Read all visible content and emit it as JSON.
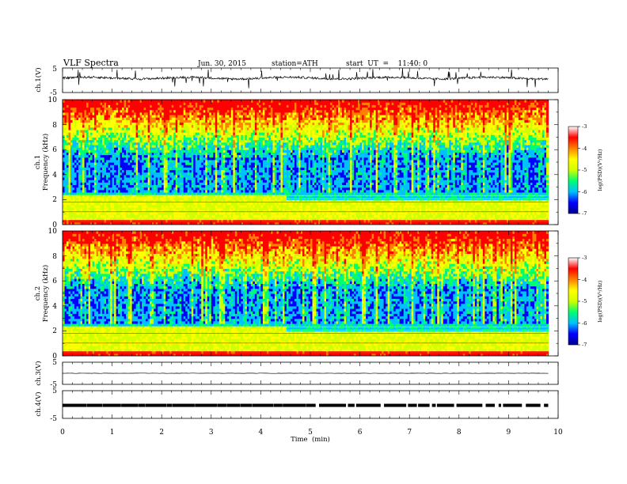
{
  "header": {
    "title": "VLF  Spectra",
    "date": "Jun. 30, 2015",
    "station": "station=ATH",
    "start": "start  UT  =    11:40: 0"
  },
  "chart_data": [
    {
      "type": "line",
      "id": "ch1-waveform",
      "ylabel": "ch.1(V)",
      "ylim": [
        -5,
        5
      ],
      "yticks": [
        "5",
        "-5"
      ],
      "xlim": [
        0,
        10
      ],
      "data_end_min": 9.8,
      "baseline_v": 0.9,
      "color": "#000000"
    },
    {
      "type": "heatmap",
      "id": "ch1-spectrogram",
      "ylabel": "ch.1",
      "ylabel2": "Frequency  (kHz)",
      "ylim": [
        0,
        10
      ],
      "yticks": [
        "0",
        "2",
        "4",
        "6",
        "8",
        "10"
      ],
      "xlim": [
        0,
        10
      ],
      "data_end_min": 9.8,
      "interference_shift_min": 4.5,
      "colorbar": {
        "label": "log(PSD)(V²/Hz)",
        "min": -7,
        "max": -3,
        "ticks": [
          "-3",
          "-4",
          "-5",
          "-6",
          "-7"
        ],
        "colors": [
          "#000090",
          "#0000ff",
          "#00c0ff",
          "#00ff70",
          "#d0ff00",
          "#ffff00",
          "#ff8000",
          "#ff0000",
          "#ffffff"
        ]
      }
    },
    {
      "type": "heatmap",
      "id": "ch2-spectrogram",
      "ylabel": "ch.2",
      "ylabel2": "Frequency  (kHz)",
      "ylim": [
        0,
        10
      ],
      "yticks": [
        "0",
        "2",
        "4",
        "6",
        "8",
        "10"
      ],
      "xlim": [
        0,
        10
      ],
      "data_end_min": 9.8,
      "interference_shift_min": 4.5,
      "colorbar": {
        "label": "log(PSD)(V²/Hz)",
        "min": -7,
        "max": -3,
        "ticks": [
          "-3",
          "-4",
          "-5",
          "-6",
          "-7"
        ],
        "colors": [
          "#000090",
          "#0000ff",
          "#00c0ff",
          "#00ff70",
          "#d0ff00",
          "#ffff00",
          "#ff8000",
          "#ff0000",
          "#ffffff"
        ]
      }
    },
    {
      "type": "line",
      "id": "ch3-waveform",
      "ylabel": "ch.3(V)",
      "ylim": [
        -5,
        5
      ],
      "yticks": [
        "5",
        "-5"
      ],
      "xlim": [
        0,
        10
      ],
      "data_end_min": 9.8,
      "baseline_v": 0.0,
      "color": "#000000"
    },
    {
      "type": "line",
      "id": "ch4-waveform",
      "ylabel": "ch.4(V)",
      "ylim": [
        -5,
        5
      ],
      "yticks": [
        "5",
        "-5"
      ],
      "xlim": [
        0,
        10
      ],
      "data_end_min": 9.8,
      "baseline_v": -0.3,
      "color": "#000000"
    }
  ],
  "xaxis": {
    "label": "Time  (min)",
    "ticks": [
      "0",
      "1",
      "2",
      "3",
      "4",
      "5",
      "6",
      "7",
      "8",
      "9",
      "10"
    ],
    "min": 0,
    "max": 10
  }
}
